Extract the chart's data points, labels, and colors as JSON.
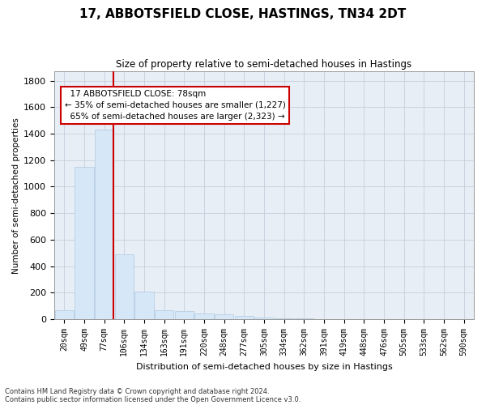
{
  "title": "17, ABBOTSFIELD CLOSE, HASTINGS, TN34 2DT",
  "subtitle": "Size of property relative to semi-detached houses in Hastings",
  "xlabel": "Distribution of semi-detached houses by size in Hastings",
  "ylabel": "Number of semi-detached properties",
  "property_label": "17 ABBOTSFIELD CLOSE: 78sqm",
  "pct_smaller": 35,
  "n_smaller": 1227,
  "pct_larger": 65,
  "n_larger": 2323,
  "bar_color": "#d6e8f7",
  "bar_edge_color": "#b0c8e0",
  "annotation_box_color": "#cc0000",
  "vline_color": "#cc0000",
  "background_color": "#e8eef5",
  "grid_color": "#c5d0dc",
  "categories": [
    "20sqm",
    "49sqm",
    "77sqm",
    "106sqm",
    "134sqm",
    "163sqm",
    "191sqm",
    "220sqm",
    "248sqm",
    "277sqm",
    "305sqm",
    "334sqm",
    "362sqm",
    "391sqm",
    "419sqm",
    "448sqm",
    "476sqm",
    "505sqm",
    "533sqm",
    "562sqm",
    "590sqm"
  ],
  "values": [
    70,
    1150,
    1430,
    490,
    210,
    70,
    60,
    45,
    35,
    25,
    15,
    8,
    10,
    3,
    2,
    1,
    1,
    0,
    0,
    0,
    0
  ],
  "ylim": [
    0,
    1870
  ],
  "yticks": [
    0,
    200,
    400,
    600,
    800,
    1000,
    1200,
    1400,
    1600,
    1800
  ],
  "footer1": "Contains HM Land Registry data © Crown copyright and database right 2024.",
  "footer2": "Contains public sector information licensed under the Open Government Licence v3.0.",
  "vline_x_index": 2,
  "fig_bg": "#ffffff"
}
